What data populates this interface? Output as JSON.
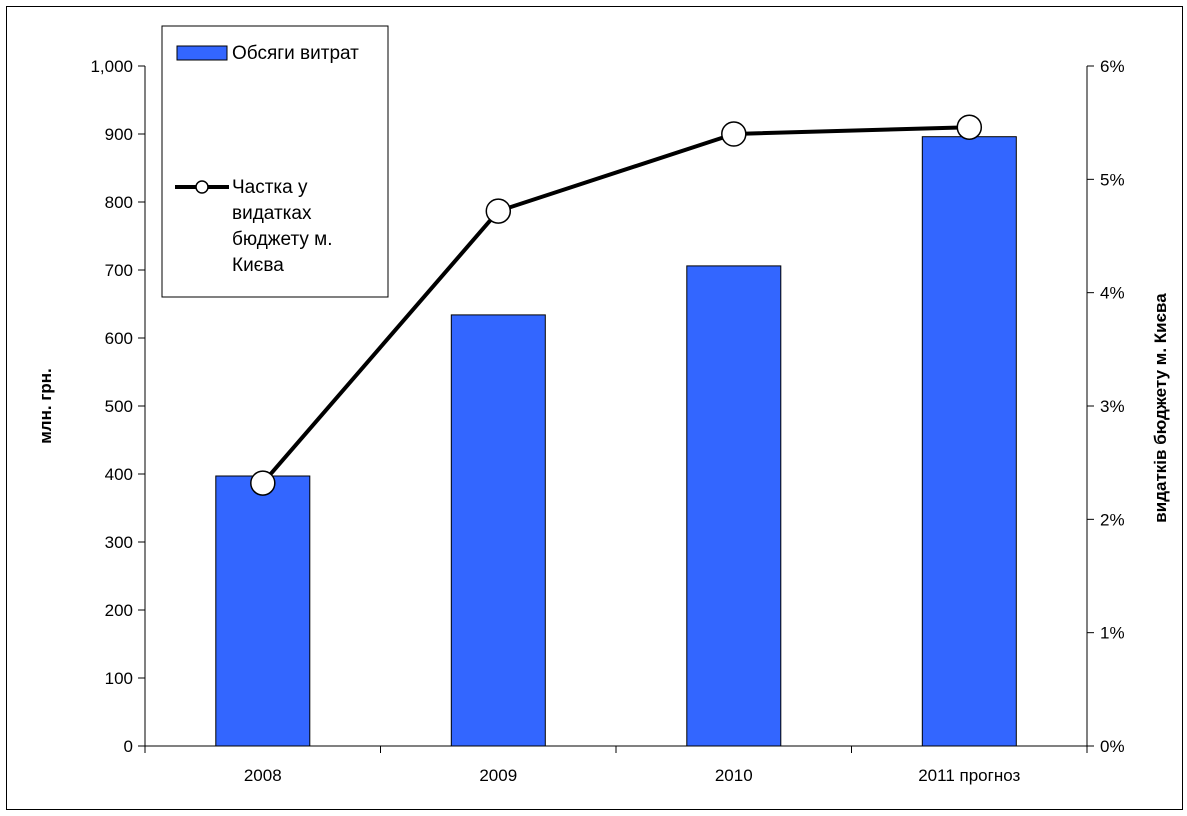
{
  "chart_data": {
    "type": "bar",
    "categories": [
      "2008",
      "2009",
      "2010",
      "2011 прогноз"
    ],
    "series": [
      {
        "name": "Обсяги витрат",
        "kind": "bar",
        "axis": "left",
        "color": "#3366ff",
        "values": [
          397,
          634,
          706,
          896
        ]
      },
      {
        "name": "Частка у видатках бюджету м. Києва",
        "kind": "line",
        "axis": "right",
        "color": "#000000",
        "values": [
          0.0232,
          0.0472,
          0.054,
          0.0546
        ]
      }
    ],
    "y_left": {
      "label": "млн. грн.",
      "range": [
        0,
        1000
      ],
      "ticks": [
        "0",
        "100",
        "200",
        "300",
        "400",
        "500",
        "600",
        "700",
        "800",
        "900",
        "1,000"
      ]
    },
    "y_right": {
      "label": "видатків бюджету м. Києва",
      "range": [
        0,
        0.06
      ],
      "ticks": [
        "0%",
        "1%",
        "2%",
        "3%",
        "4%",
        "5%",
        "6%"
      ]
    },
    "legend_lines": {
      "bar": [
        "Обсяги витрат"
      ],
      "line": [
        "Частка у",
        "видатках",
        "бюджету м.",
        "Києва"
      ]
    },
    "legend_position": "top-left",
    "grid": false
  }
}
